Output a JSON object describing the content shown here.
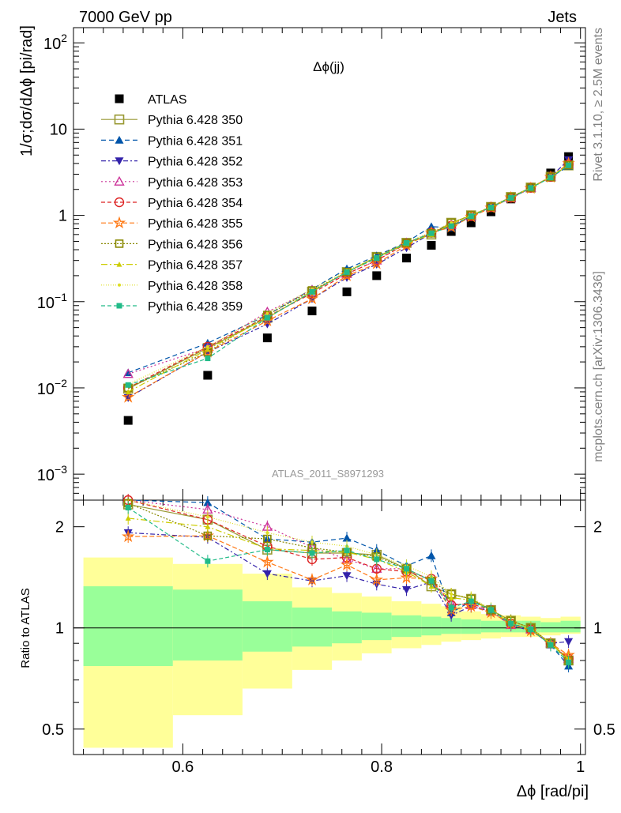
{
  "header": {
    "left": "7000 GeV pp",
    "right": "Jets"
  },
  "side_labels": {
    "rivet": "Rivet 3.1.10, ≥ 2.5M events",
    "mcplots": "mcplots.cern.ch [arXiv:1306.3436]"
  },
  "chart_data": [
    {
      "type": "scatter",
      "title": "Δϕ(jj)",
      "ylabel": "1/σ;dσ/dΔϕ [pi/rad]",
      "xlabel": "",
      "xlim": [
        0.49,
        1.005
      ],
      "ylim": [
        0.0005,
        150
      ],
      "yscale": "log",
      "y_ticks": [
        {
          "value": 100,
          "base": "10",
          "exp": "2"
        },
        {
          "value": 10,
          "text": "10"
        },
        {
          "value": 1,
          "text": "1"
        },
        {
          "value": 0.1,
          "base": "10",
          "exp": "−1"
        },
        {
          "value": 0.01,
          "base": "10",
          "exp": "−2"
        },
        {
          "value": 0.001,
          "base": "10",
          "exp": "−3"
        }
      ],
      "watermark": "ATLAS_2011_S8971293",
      "x": [
        0.545,
        0.625,
        0.685,
        0.73,
        0.765,
        0.795,
        0.825,
        0.85,
        0.87,
        0.89,
        0.91,
        0.93,
        0.95,
        0.97,
        0.988
      ],
      "legend_position": "top-left",
      "series": [
        {
          "name": "ATLAS",
          "color": "#000000",
          "marker": "square-filled",
          "dash": "none",
          "values": [
            0.0042,
            0.014,
            0.038,
            0.078,
            0.13,
            0.2,
            0.32,
            0.45,
            0.65,
            0.82,
            1.1,
            1.55,
            2.1,
            3.1,
            4.8
          ]
        },
        {
          "name": "Pythia 6.428 350",
          "color": "#999933",
          "marker": "square-open",
          "dash": "solid",
          "values": [
            0.0098,
            0.029,
            0.065,
            0.13,
            0.22,
            0.33,
            0.48,
            0.6,
            0.82,
            1.0,
            1.25,
            1.63,
            2.1,
            2.8,
            3.8
          ]
        },
        {
          "name": "Pythia 6.428 351",
          "color": "#0055aa",
          "marker": "triangle-up-filled",
          "dash": "6,4",
          "values": [
            0.015,
            0.033,
            0.07,
            0.14,
            0.24,
            0.34,
            0.49,
            0.74,
            0.72,
            0.99,
            1.26,
            1.6,
            2.08,
            2.77,
            3.7
          ]
        },
        {
          "name": "Pythia 6.428 352",
          "color": "#3322aa",
          "marker": "triangle-down-filled",
          "dash": "6,3,2,3",
          "values": [
            0.0077,
            0.026,
            0.055,
            0.108,
            0.19,
            0.27,
            0.42,
            0.62,
            0.76,
            0.96,
            1.24,
            1.58,
            2.07,
            2.8,
            4.4
          ]
        },
        {
          "name": "Pythia 6.428 353",
          "color": "#cc3399",
          "marker": "triangle-up-open",
          "dash": "2,3",
          "values": [
            0.0145,
            0.029,
            0.076,
            0.136,
            0.21,
            0.3,
            0.48,
            0.62,
            0.77,
            0.97,
            1.24,
            1.58,
            2.08,
            2.8,
            3.9
          ]
        },
        {
          "name": "Pythia 6.428 354",
          "color": "#dd2222",
          "marker": "circle-open",
          "dash": "5,3",
          "values": [
            0.01,
            0.03,
            0.067,
            0.125,
            0.21,
            0.3,
            0.47,
            0.63,
            0.76,
            0.98,
            1.25,
            1.6,
            2.09,
            2.8,
            3.9
          ]
        },
        {
          "name": "Pythia 6.428 355",
          "color": "#ff7711",
          "marker": "star-open",
          "dash": "6,3",
          "values": [
            0.0078,
            0.026,
            0.06,
            0.108,
            0.2,
            0.275,
            0.45,
            0.63,
            0.73,
            0.96,
            1.22,
            1.6,
            2.06,
            2.78,
            4.0
          ]
        },
        {
          "name": "Pythia 6.428 356",
          "color": "#888800",
          "marker": "square-open-small",
          "dash": "2,2",
          "values": [
            0.01,
            0.026,
            0.07,
            0.135,
            0.22,
            0.33,
            0.48,
            0.62,
            0.82,
            1.0,
            1.26,
            1.63,
            2.1,
            2.8,
            3.8
          ]
        },
        {
          "name": "Pythia 6.428 357",
          "color": "#cccc00",
          "marker": "tri-small",
          "dash": "8,3,2,3",
          "values": [
            0.009,
            0.028,
            0.065,
            0.132,
            0.22,
            0.32,
            0.47,
            0.6,
            0.8,
            0.99,
            1.25,
            1.6,
            2.09,
            2.8,
            3.9
          ]
        },
        {
          "name": "Pythia 6.428 358",
          "color": "#dddd22",
          "marker": "dot",
          "dash": "1,2",
          "values": [
            0.011,
            0.03,
            0.073,
            0.14,
            0.23,
            0.33,
            0.49,
            0.64,
            0.82,
            1.01,
            1.26,
            1.62,
            2.1,
            2.8,
            3.8
          ]
        },
        {
          "name": "Pythia 6.428 359",
          "color": "#22bb88",
          "marker": "square-filled-small",
          "dash": "5,3",
          "values": [
            0.0108,
            0.022,
            0.065,
            0.13,
            0.22,
            0.32,
            0.48,
            0.62,
            0.75,
            0.98,
            1.24,
            1.6,
            2.08,
            2.75,
            3.8
          ]
        }
      ]
    },
    {
      "type": "scatter",
      "title": "",
      "ylabel": "Ratio to ATLAS",
      "xlabel": "Δϕ [rad/pi]",
      "xlim": [
        0.49,
        1.005
      ],
      "ylim": [
        0.42,
        2.4
      ],
      "yscale": "log",
      "y_ticks": [
        0.5,
        1,
        2
      ],
      "x_ticks": [
        {
          "value": 0.6,
          "text": "0.6"
        },
        {
          "value": 0.8,
          "text": "0.8"
        },
        {
          "value": 1,
          "text": "1"
        }
      ],
      "uncertainty_bands": {
        "edges": [
          0.5,
          0.59,
          0.66,
          0.71,
          0.75,
          0.78,
          0.81,
          0.84,
          0.86,
          0.88,
          0.9,
          0.92,
          0.94,
          0.96,
          0.98,
          1.0
        ],
        "outer_color": "#ffff99",
        "inner_color": "#99ff99",
        "outer_low": [
          0.44,
          0.55,
          0.66,
          0.75,
          0.8,
          0.84,
          0.87,
          0.89,
          0.91,
          0.92,
          0.93,
          0.94,
          0.94,
          0.95,
          0.96
        ],
        "outer_high": [
          1.62,
          1.55,
          1.45,
          1.32,
          1.27,
          1.24,
          1.2,
          1.18,
          1.16,
          1.12,
          1.1,
          1.09,
          1.08,
          1.07,
          1.08
        ],
        "inner_low": [
          0.77,
          0.8,
          0.85,
          0.88,
          0.9,
          0.92,
          0.94,
          0.95,
          0.96,
          0.96,
          0.97,
          0.97,
          0.97,
          0.97,
          0.97
        ],
        "inner_high": [
          1.33,
          1.3,
          1.2,
          1.15,
          1.12,
          1.11,
          1.09,
          1.08,
          1.07,
          1.06,
          1.05,
          1.05,
          1.05,
          1.04,
          1.05
        ]
      },
      "ratio_series": [
        {
          "name": "Pythia 6.428 350",
          "values": [
            2.33,
            2.1,
            1.71,
            1.67,
            1.67,
            1.65,
            1.5,
            1.33,
            1.26,
            1.22,
            1.13,
            1.05,
            1.0,
            0.9,
            0.8
          ]
        },
        {
          "name": "Pythia 6.428 351",
          "values": [
            2.55,
            2.36,
            1.84,
            1.8,
            1.85,
            1.7,
            1.53,
            1.64,
            1.11,
            1.2,
            1.14,
            1.03,
            0.99,
            0.89,
            0.77
          ]
        },
        {
          "name": "Pythia 6.428 352",
          "values": [
            1.92,
            1.86,
            1.45,
            1.38,
            1.43,
            1.35,
            1.3,
            1.37,
            1.09,
            1.16,
            1.12,
            1.02,
            0.98,
            0.9,
            0.91
          ]
        },
        {
          "name": "Pythia 6.428 353",
          "values": [
            2.5,
            2.25,
            2.0,
            1.74,
            1.6,
            1.5,
            1.5,
            1.38,
            1.18,
            1.17,
            1.12,
            1.02,
            0.99,
            0.9,
            0.81
          ]
        },
        {
          "name": "Pythia 6.428 354",
          "values": [
            2.4,
            2.1,
            1.75,
            1.6,
            1.62,
            1.5,
            1.47,
            1.4,
            1.17,
            1.18,
            1.13,
            1.03,
            0.99,
            0.9,
            0.81
          ]
        },
        {
          "name": "Pythia 6.428 355",
          "values": [
            1.87,
            1.88,
            1.57,
            1.39,
            1.54,
            1.39,
            1.41,
            1.4,
            1.13,
            1.16,
            1.11,
            1.03,
            0.98,
            0.9,
            0.83
          ]
        },
        {
          "name": "Pythia 6.428 356",
          "values": [
            2.35,
            1.88,
            1.84,
            1.73,
            1.68,
            1.63,
            1.5,
            1.38,
            1.26,
            1.22,
            1.13,
            1.05,
            1.0,
            0.9,
            0.8
          ]
        },
        {
          "name": "Pythia 6.428 357",
          "values": [
            2.12,
            2.0,
            1.72,
            1.7,
            1.68,
            1.6,
            1.47,
            1.33,
            1.23,
            1.21,
            1.13,
            1.03,
            0.99,
            0.9,
            0.81
          ]
        },
        {
          "name": "Pythia 6.428 358",
          "values": [
            2.6,
            2.14,
            1.92,
            1.8,
            1.75,
            1.65,
            1.53,
            1.42,
            1.26,
            1.23,
            1.14,
            1.04,
            1.0,
            0.9,
            0.8
          ]
        },
        {
          "name": "Pythia 6.428 359",
          "values": [
            2.28,
            1.58,
            1.71,
            1.67,
            1.7,
            1.6,
            1.5,
            1.38,
            1.15,
            1.2,
            1.13,
            1.03,
            0.99,
            0.89,
            0.79
          ]
        }
      ]
    }
  ]
}
